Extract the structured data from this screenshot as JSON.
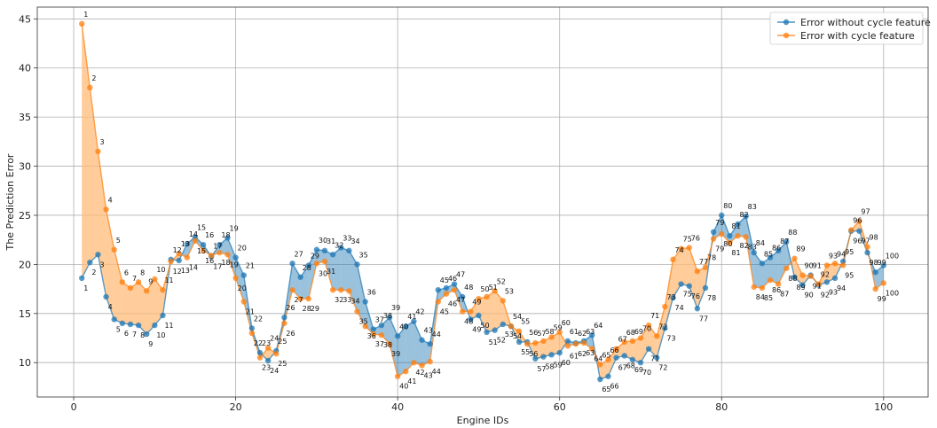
{
  "chart_data": {
    "type": "line",
    "title": "",
    "xlabel": "Engine IDs",
    "ylabel": "The Prediction Error",
    "xlim": [
      -4.5,
      105.5
    ],
    "ylim": [
      6.5,
      46.2
    ],
    "xticks": [
      0,
      20,
      40,
      60,
      80,
      100
    ],
    "yticks": [
      10,
      15,
      20,
      25,
      30,
      35,
      40,
      45
    ],
    "grid": true,
    "legend_position": "top-right",
    "fill_between": true,
    "point_labels": true,
    "x": [
      1,
      2,
      3,
      4,
      5,
      6,
      7,
      8,
      9,
      10,
      11,
      12,
      13,
      14,
      15,
      16,
      17,
      18,
      19,
      20,
      21,
      22,
      23,
      24,
      25,
      26,
      27,
      28,
      29,
      30,
      31,
      32,
      33,
      34,
      35,
      36,
      37,
      38,
      39,
      40,
      41,
      42,
      43,
      44,
      45,
      46,
      47,
      48,
      49,
      50,
      51,
      52,
      53,
      54,
      55,
      56,
      57,
      58,
      59,
      60,
      61,
      62,
      63,
      64,
      65,
      66,
      67,
      68,
      69,
      70,
      71,
      72,
      73,
      74,
      75,
      76,
      77,
      78,
      79,
      80,
      81,
      82,
      83,
      84,
      85,
      86,
      87,
      88,
      89,
      90,
      91,
      92,
      93,
      94,
      95,
      96,
      97,
      98,
      99,
      100
    ],
    "series": [
      {
        "name": "Error without cycle feature",
        "color": "#1f77b4",
        "fill_color": "#1f77b4",
        "values": [
          18.6,
          20.2,
          21.0,
          16.7,
          14.4,
          14.0,
          13.9,
          13.8,
          12.9,
          13.8,
          14.8,
          20.5,
          20.4,
          22.1,
          22.8,
          22.0,
          20.8,
          22.0,
          22.7,
          20.7,
          18.9,
          13.5,
          11.0,
          10.2,
          11.2,
          14.6,
          20.1,
          18.7,
          19.9,
          21.5,
          21.4,
          21.0,
          21.7,
          21.4,
          20.0,
          16.2,
          13.4,
          13.8,
          14.6,
          12.7,
          13.7,
          14.2,
          12.3,
          11.9,
          17.4,
          17.6,
          18.0,
          16.7,
          14.4,
          14.8,
          13.1,
          13.3,
          13.9,
          13.7,
          12.1,
          12.1,
          10.4,
          10.6,
          10.8,
          11.0,
          12.2,
          12.0,
          12.2,
          12.8,
          8.3,
          8.6,
          10.5,
          10.7,
          10.3,
          10.0,
          11.4,
          10.5,
          13.5,
          16.6,
          18.0,
          17.8,
          15.5,
          17.6,
          23.3,
          25.0,
          22.9,
          24.1,
          24.9,
          21.2,
          20.1,
          20.7,
          21.4,
          22.3,
          18.7,
          17.9,
          18.9,
          17.9,
          18.2,
          18.6,
          20.3,
          23.4,
          23.4,
          21.2,
          19.2,
          19.9
        ]
      },
      {
        "name": "Error with cycle feature",
        "color": "#ff7f0e",
        "fill_color": "#ffbb78",
        "values": [
          44.5,
          38.0,
          31.5,
          25.6,
          21.5,
          18.2,
          17.6,
          18.2,
          17.3,
          18.5,
          17.4,
          20.3,
          21.1,
          20.7,
          22.4,
          21.4,
          20.9,
          21.2,
          21.0,
          18.6,
          16.2,
          13.0,
          10.5,
          11.5,
          10.9,
          14.0,
          17.4,
          16.5,
          16.5,
          20.1,
          20.3,
          17.4,
          17.4,
          17.3,
          15.2,
          13.7,
          12.9,
          12.8,
          11.9,
          8.6,
          9.1,
          10.0,
          9.7,
          10.1,
          16.2,
          17.0,
          17.4,
          15.2,
          15.2,
          16.5,
          16.7,
          17.3,
          16.3,
          13.7,
          13.2,
          11.9,
          12.0,
          12.2,
          12.6,
          13.1,
          11.7,
          11.9,
          12.0,
          11.4,
          9.8,
          10.3,
          11.4,
          12.1,
          12.2,
          12.5,
          13.8,
          12.7,
          15.7,
          20.5,
          21.6,
          21.7,
          19.3,
          19.7,
          22.6,
          23.1,
          22.2,
          22.9,
          22.8,
          17.7,
          17.6,
          18.4,
          18.0,
          19.6,
          20.6,
          18.9,
          18.8,
          18.0,
          19.9,
          20.1,
          19.9,
          23.5,
          24.4,
          21.8,
          17.5,
          18.1
        ]
      }
    ]
  }
}
